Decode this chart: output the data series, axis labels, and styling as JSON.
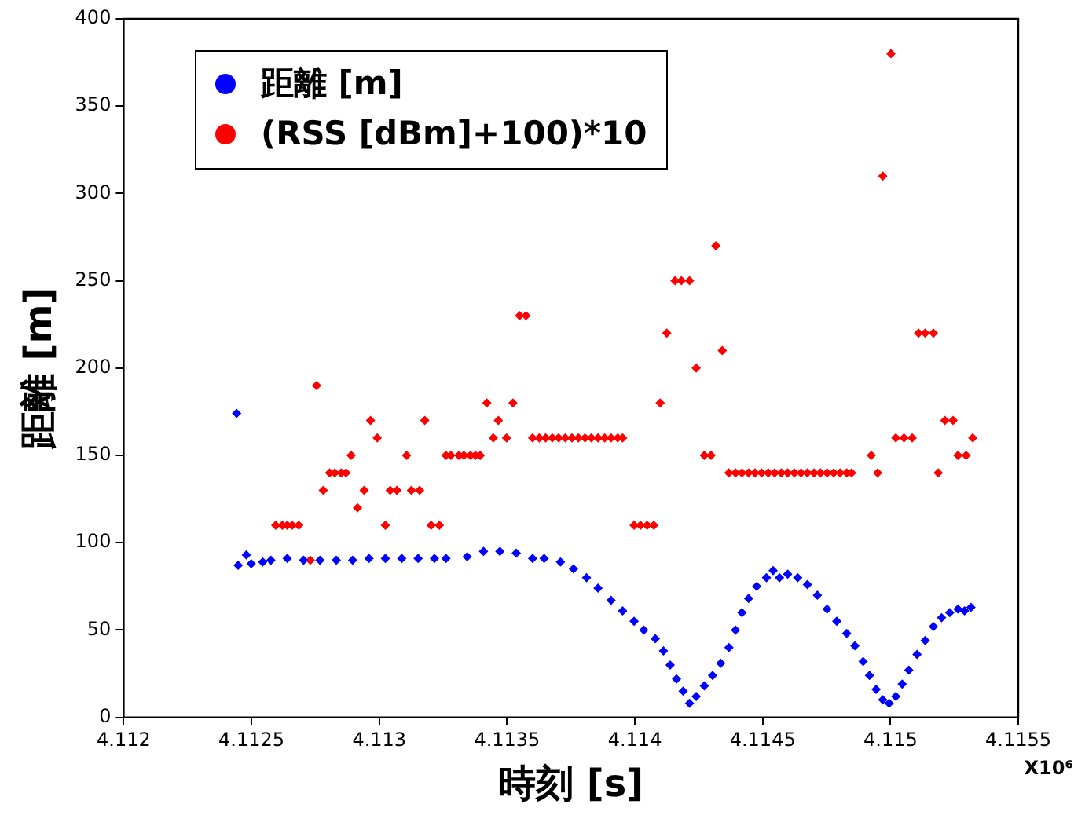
{
  "chart_data": {
    "type": "scatter",
    "xlabel": "時刻 [s]",
    "ylabel": "距離 [m]",
    "annotations": [
      "X10⁶"
    ],
    "legend": "top left",
    "marker": "diamond",
    "xlim": [
      4.112,
      4.1155
    ],
    "xticks": [
      4.112,
      4.1125,
      4.113,
      4.1135,
      4.114,
      4.1145,
      4.115,
      4.1155
    ],
    "ylim": [
      0,
      400
    ],
    "yticks": [
      0,
      50,
      100,
      150,
      200,
      250,
      300,
      350,
      400
    ],
    "series": [
      {
        "name": "距離 [m]",
        "color": "#0000ff",
        "x": [
          4.112448,
          4.11248,
          4.112499,
          4.112544,
          4.11264,
          4.112768,
          4.112896,
          4.113024,
          4.113152,
          4.113261,
          4.113344,
          4.113408,
          4.113472,
          4.113536,
          4.1136,
          4.113645,
          4.113709,
          4.11376,
          4.113811,
          4.113856,
          4.113907,
          4.113952,
          4.113997,
          4.114035,
          4.11408,
          4.114112,
          4.114138,
          4.114163,
          4.114189,
          4.114214,
          4.11424,
          4.114272,
          4.114304,
          4.114336,
          4.114368,
          4.114394,
          4.114419,
          4.114445,
          4.114477,
          4.114515,
          4.114541,
          4.114566,
          4.114598,
          4.114637,
          4.114675,
          4.114714,
          4.114752,
          4.11479,
          4.114829,
          4.114861,
          4.114893,
          4.114918,
          4.114944,
          4.11497,
          4.114995,
          4.115021,
          4.115046,
          4.115072,
          4.115104,
          4.115136,
          4.115168,
          4.1152,
          4.115232,
          4.115264,
          4.11529,
          4.115315,
          4.112442,
          4.112576,
          4.112704,
          4.112832,
          4.11296,
          4.113088,
          4.113216
        ],
        "values": [
          87,
          93,
          88,
          89,
          91,
          90,
          90,
          91,
          91,
          91,
          92,
          95,
          95,
          94,
          91,
          91,
          89,
          85,
          80,
          74,
          67,
          61,
          55,
          50,
          45,
          38,
          30,
          22,
          15,
          8,
          12,
          18,
          24,
          31,
          40,
          50,
          60,
          68,
          75,
          80,
          84,
          80,
          82,
          80,
          76,
          70,
          62,
          55,
          48,
          41,
          32,
          24,
          16,
          10,
          8,
          12,
          19,
          27,
          36,
          44,
          52,
          57,
          60,
          62,
          61,
          63,
          174,
          90,
          90,
          90,
          91,
          91,
          91
        ]
      },
      {
        "name": "(RSS [dBm]+100)*10",
        "color": "#ff0000",
        "x": [
          4.112595,
          4.112621,
          4.11264,
          4.112659,
          4.112685,
          4.11273,
          4.112755,
          4.112781,
          4.112806,
          4.112826,
          4.112851,
          4.11287,
          4.11289,
          4.112915,
          4.112941,
          4.112966,
          4.112992,
          4.113024,
          4.113043,
          4.113069,
          4.113107,
          4.113126,
          4.113158,
          4.113178,
          4.113203,
          4.113235,
          4.113261,
          4.11328,
          4.113312,
          4.113331,
          4.113357,
          4.113376,
          4.113395,
          4.113421,
          4.113446,
          4.113466,
          4.113498,
          4.113523,
          4.113549,
          4.113574,
          4.1136,
          4.113626,
          4.113651,
          4.113677,
          4.113702,
          4.113728,
          4.113754,
          4.113779,
          4.113805,
          4.11383,
          4.113856,
          4.113882,
          4.113907,
          4.113933,
          4.113952,
          4.113997,
          4.114022,
          4.114048,
          4.114074,
          4.114099,
          4.114125,
          4.114157,
          4.114182,
          4.114214,
          4.11424,
          4.114272,
          4.114298,
          4.114317,
          4.114342,
          4.114368,
          4.114394,
          4.114419,
          4.114445,
          4.11447,
          4.114496,
          4.114522,
          4.114547,
          4.114573,
          4.114598,
          4.114624,
          4.11465,
          4.114675,
          4.114701,
          4.114726,
          4.114752,
          4.114778,
          4.114803,
          4.114829,
          4.114848,
          4.114925,
          4.11495,
          4.11497,
          4.115002,
          4.115021,
          4.115053,
          4.115085,
          4.11511,
          4.115136,
          4.115168,
          4.115187,
          4.115213,
          4.115245,
          4.115264,
          4.115296,
          4.115322
        ],
        "values": [
          110,
          110,
          110,
          110,
          110,
          90,
          190,
          130,
          140,
          140,
          140,
          140,
          150,
          120,
          130,
          170,
          160,
          110,
          130,
          130,
          150,
          130,
          130,
          170,
          110,
          110,
          150,
          150,
          150,
          150,
          150,
          150,
          150,
          180,
          160,
          170,
          160,
          180,
          230,
          230,
          160,
          160,
          160,
          160,
          160,
          160,
          160,
          160,
          160,
          160,
          160,
          160,
          160,
          160,
          160,
          110,
          110,
          110,
          110,
          180,
          220,
          250,
          250,
          250,
          200,
          150,
          150,
          270,
          210,
          140,
          140,
          140,
          140,
          140,
          140,
          140,
          140,
          140,
          140,
          140,
          140,
          140,
          140,
          140,
          140,
          140,
          140,
          140,
          140,
          150,
          140,
          310,
          380,
          160,
          160,
          160,
          220,
          220,
          220,
          140,
          170,
          170,
          150,
          150,
          160
        ]
      }
    ]
  }
}
